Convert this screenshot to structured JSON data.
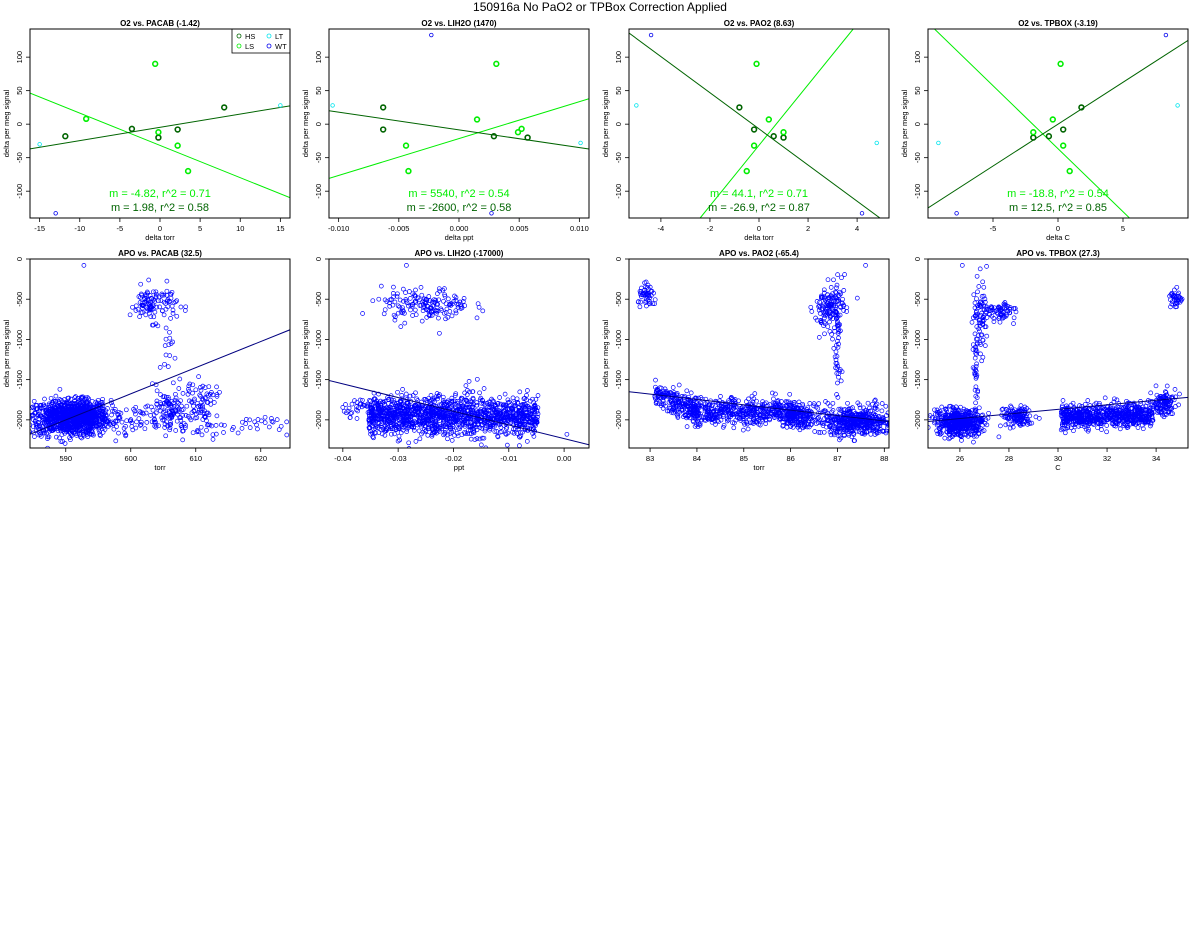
{
  "figure": {
    "title": "150916a   No PaO2 or TPBox Correction Applied"
  },
  "colors": {
    "HS": "#006400",
    "LS": "#00ee00",
    "LT": "#00e5ee",
    "WT": "#0000ee",
    "apo_points": "#0000ff",
    "apo_line": "#000080",
    "fit_dark": "#006400",
    "fit_light": "#00ee00"
  },
  "chart_data": [
    {
      "type": "scatter",
      "title": "O2 vs. PACAB (-1.42)",
      "xlabel": "delta torr",
      "ylabel": "delta per meg signal",
      "xlim": [
        -16.2,
        16.2
      ],
      "ylim": [
        -140,
        142
      ],
      "xticks": [
        -15,
        -10,
        -5,
        0,
        5,
        10,
        15
      ],
      "xtick_labels": [
        "-15",
        "-10",
        "-5",
        "0",
        "5",
        "10",
        "15"
      ],
      "yticks": [
        -100,
        -50,
        0,
        50,
        100
      ],
      "ytick_labels": [
        "-100",
        "-50",
        "0",
        "50",
        "100"
      ],
      "legend": {
        "position": "top-right",
        "entries": [
          {
            "label": "HS",
            "key": "HS"
          },
          {
            "label": "LT",
            "key": "LT"
          },
          {
            "label": "LS",
            "key": "LS"
          },
          {
            "label": "WT",
            "key": "WT"
          }
        ]
      },
      "series": [
        {
          "name": "HS",
          "points": [
            [
              -11.8,
              -18
            ],
            [
              -3.5,
              -7
            ],
            [
              -0.2,
              -20
            ],
            [
              2.2,
              -8
            ],
            [
              8,
              25
            ]
          ]
        },
        {
          "name": "LS",
          "points": [
            [
              -9.2,
              8
            ],
            [
              -0.6,
              90
            ],
            [
              -0.2,
              -12
            ],
            [
              2.2,
              -32
            ],
            [
              3.5,
              -70
            ]
          ]
        },
        {
          "name": "LT",
          "points": [
            [
              15,
              28
            ],
            [
              -15,
              -30
            ]
          ]
        },
        {
          "name": "WT",
          "points": [
            [
              -13,
              -133
            ]
          ]
        }
      ],
      "fits": [
        {
          "series": "LS",
          "text": "m = -4.82, r^2 = 0.71",
          "x": [
            -16.2,
            16.2
          ],
          "y": [
            46.4,
            -109.7
          ]
        },
        {
          "series": "HS",
          "text": "m = 1.98, r^2 = 0.58",
          "x": [
            -16.2,
            16.2
          ],
          "y": [
            -36.8,
            27.4
          ]
        }
      ]
    },
    {
      "type": "scatter",
      "title": "O2 vs. LIH2O (1470)",
      "xlabel": "delta ppt",
      "ylabel": "delta per meg signal",
      "xlim": [
        -0.0108,
        0.0108
      ],
      "ylim": [
        -140,
        142
      ],
      "xticks": [
        -0.01,
        -0.005,
        0,
        0.005,
        0.01
      ],
      "xtick_labels": [
        "-0.010",
        "-0.005",
        "0.000",
        "0.005",
        "0.010"
      ],
      "yticks": [
        -100,
        -50,
        0,
        50,
        100
      ],
      "ytick_labels": [
        "-100",
        "-50",
        "0",
        "50",
        "100"
      ],
      "series": [
        {
          "name": "HS",
          "points": [
            [
              -0.0063,
              25
            ],
            [
              -0.0063,
              -8
            ],
            [
              0.0029,
              -18
            ],
            [
              0.0057,
              -20
            ]
          ]
        },
        {
          "name": "LS",
          "points": [
            [
              -0.0044,
              -32
            ],
            [
              -0.0042,
              -70
            ],
            [
              0.0031,
              90
            ],
            [
              0.0015,
              7
            ],
            [
              0.0049,
              -12
            ],
            [
              0.0052,
              -7
            ]
          ]
        },
        {
          "name": "LT",
          "points": [
            [
              -0.0105,
              28
            ],
            [
              0.0101,
              -28
            ]
          ]
        },
        {
          "name": "WT",
          "points": [
            [
              -0.0023,
              133
            ],
            [
              0.0027,
              -133
            ]
          ]
        }
      ],
      "fits": [
        {
          "series": "LS",
          "text": "m = 5540, r^2 = 0.54",
          "x": [
            -0.0108,
            0.0108
          ],
          "y": [
            -81,
            38
          ]
        },
        {
          "series": "HS",
          "text": "m = -2600, r^2 = 0.58",
          "x": [
            -0.0108,
            0.0108
          ],
          "y": [
            20,
            -37
          ]
        }
      ]
    },
    {
      "type": "scatter",
      "title": "O2 vs. PAO2 (8.63)",
      "xlabel": "delta torr",
      "ylabel": "delta per meg signal",
      "xlim": [
        -5.3,
        5.3
      ],
      "ylim": [
        -140,
        142
      ],
      "xticks": [
        -4,
        -2,
        0,
        2,
        4
      ],
      "xtick_labels": [
        "-4",
        "-2",
        "0",
        "2",
        "4"
      ],
      "yticks": [
        -100,
        -50,
        0,
        50,
        100
      ],
      "ytick_labels": [
        "-100",
        "-50",
        "0",
        "50",
        "100"
      ],
      "series": [
        {
          "name": "HS",
          "points": [
            [
              -0.8,
              25
            ],
            [
              -0.2,
              -8
            ],
            [
              0.6,
              -18
            ],
            [
              1.0,
              -20
            ]
          ]
        },
        {
          "name": "LS",
          "points": [
            [
              -0.5,
              -70
            ],
            [
              -0.2,
              -32
            ],
            [
              0.4,
              7
            ],
            [
              1.0,
              -12
            ],
            [
              -0.1,
              90
            ]
          ]
        },
        {
          "name": "LT",
          "points": [
            [
              -5.0,
              28
            ],
            [
              4.8,
              -28
            ]
          ]
        },
        {
          "name": "WT",
          "points": [
            [
              -4.4,
              133
            ],
            [
              4.2,
              -133
            ]
          ]
        }
      ],
      "fits": [
        {
          "series": "LS",
          "text": "m = 44.1, r^2 = 0.71",
          "x": [
            -2.4,
            3.84
          ],
          "y": [
            -140,
            142
          ]
        },
        {
          "series": "HS",
          "text": "m = -26.9, r^2 = 0.87",
          "x": [
            -5.3,
            5.3
          ],
          "y": [
            136,
            -150
          ]
        }
      ]
    },
    {
      "type": "scatter",
      "title": "O2 vs. TPBOX (-3.19)",
      "xlabel": "delta C",
      "ylabel": "delta per meg signal",
      "xlim": [
        -10,
        10
      ],
      "ylim": [
        -140,
        142
      ],
      "xticks": [
        -5,
        0,
        5
      ],
      "xtick_labels": [
        "-5",
        "0",
        "5"
      ],
      "yticks": [
        -100,
        -50,
        0,
        50,
        100
      ],
      "ytick_labels": [
        "-100",
        "-50",
        "0",
        "50",
        "100"
      ],
      "series": [
        {
          "name": "HS",
          "points": [
            [
              -1.9,
              -20
            ],
            [
              -0.7,
              -18
            ],
            [
              0.4,
              -8
            ],
            [
              1.8,
              25
            ]
          ]
        },
        {
          "name": "LS",
          "points": [
            [
              -1.9,
              -12
            ],
            [
              -0.4,
              7
            ],
            [
              0.4,
              -32
            ],
            [
              0.9,
              -70
            ],
            [
              0.2,
              90
            ]
          ]
        },
        {
          "name": "LT",
          "points": [
            [
              -9.2,
              -28
            ],
            [
              9.2,
              28
            ]
          ]
        },
        {
          "name": "WT",
          "points": [
            [
              -7.8,
              -133
            ],
            [
              8.3,
              133
            ]
          ]
        }
      ],
      "fits": [
        {
          "series": "LS",
          "text": "m = -18.8, r^2 = 0.54",
          "x": [
            -9.5,
            5.5
          ],
          "y": [
            142,
            -140
          ]
        },
        {
          "series": "HS",
          "text": "m = 12.5, r^2 = 0.85",
          "x": [
            -10,
            10
          ],
          "y": [
            -125,
            125
          ]
        }
      ]
    },
    {
      "type": "scatter",
      "title": "APO vs. PACAB (32.5)",
      "xlabel": "torr",
      "ylabel": "delta per meg signal",
      "xlim": [
        584.5,
        624.5
      ],
      "ylim": [
        -2350,
        0
      ],
      "xticks": [
        590,
        600,
        610,
        620
      ],
      "xtick_labels": [
        "590",
        "600",
        "610",
        "620"
      ],
      "yticks": [
        0,
        -500,
        -1000,
        -1500,
        -2000
      ],
      "ytick_labels": [
        "0",
        "-500",
        "-1000",
        "-1500",
        "-2000"
      ],
      "clusters": [
        {
          "cx": 590.5,
          "cy": -1980,
          "sx": 3.2,
          "sy": 110,
          "n": 900
        },
        {
          "cx": 593,
          "cy": -1930,
          "sx": 1.6,
          "sy": 90,
          "n": 250
        },
        {
          "cx": 603.5,
          "cy": -560,
          "sx": 1.8,
          "sy": 110,
          "n": 110
        },
        {
          "cx": 606,
          "cy": -1900,
          "sx": 1.8,
          "sy": 140,
          "n": 120
        },
        {
          "cx": 611,
          "cy": -1750,
          "sx": 1.2,
          "sy": 110,
          "n": 60
        },
        {
          "cx": 612,
          "cy": -2080,
          "sx": 5,
          "sy": 70,
          "n": 40
        },
        {
          "cx": 619,
          "cy": -2060,
          "sx": 3,
          "sy": 60,
          "n": 20
        },
        {
          "cx": 599,
          "cy": -2030,
          "sx": 2.5,
          "sy": 90,
          "n": 40
        },
        {
          "cx": 605.5,
          "cy": -1150,
          "sx": 0.5,
          "sy": 200,
          "n": 14
        }
      ],
      "outliers": [
        [
          592.8,
          -80
        ]
      ],
      "fit": {
        "x": [
          584.5,
          624.5
        ],
        "y": [
          -2180,
          -880
        ]
      }
    },
    {
      "type": "scatter",
      "title": "APO vs. LIH2O (-17000)",
      "xlabel": "ppt",
      "ylabel": "delta per meg signal",
      "xlim": [
        -0.0425,
        0.0045
      ],
      "ylim": [
        -2350,
        0
      ],
      "xticks": [
        -0.04,
        -0.03,
        -0.02,
        -0.01,
        0
      ],
      "xtick_labels": [
        "-0.04",
        "-0.03",
        "-0.02",
        "-0.01",
        "0.00"
      ],
      "yticks": [
        0,
        -500,
        -1000,
        -1500,
        -2000
      ],
      "ytick_labels": [
        "0",
        "-500",
        "-1000",
        "-1500",
        "-2000"
      ],
      "clusters": [
        {
          "cx": -0.02,
          "cy": -1950,
          "sx": 0.009,
          "sy": 120,
          "n": 1400,
          "band": true
        },
        {
          "cx": -0.025,
          "cy": -580,
          "sx": 0.004,
          "sy": 110,
          "n": 160
        },
        {
          "cx": -0.036,
          "cy": -1830,
          "sx": 0.002,
          "sy": 60,
          "n": 40
        }
      ],
      "outliers": [
        [
          -0.0285,
          -80
        ],
        [
          0.0005,
          -2180
        ],
        [
          -0.0335,
          -500
        ]
      ],
      "fit": {
        "x": [
          -0.0425,
          0.0045
        ],
        "y": [
          -1510,
          -2310
        ]
      }
    },
    {
      "type": "scatter",
      "title": "APO vs. PAO2 (-65.4)",
      "xlabel": "torr",
      "ylabel": "delta per meg signal",
      "xlim": [
        82.55,
        88.1
      ],
      "ylim": [
        -2350,
        0
      ],
      "xticks": [
        83,
        84,
        85,
        86,
        87,
        88
      ],
      "xtick_labels": [
        "83",
        "84",
        "85",
        "86",
        "87",
        "88"
      ],
      "yticks": [
        0,
        -500,
        -1000,
        -1500,
        -2000
      ],
      "ytick_labels": [
        "0",
        "-500",
        "-1000",
        "-1500",
        "-2000"
      ],
      "clusters": [
        {
          "cx": 82.95,
          "cy": -470,
          "sx": 0.1,
          "sy": 70,
          "n": 50
        },
        {
          "cx": 85,
          "cy": -1900,
          "sx": 0.7,
          "sy": 80,
          "n": 700,
          "band": true,
          "ramp": [
            83.1,
            84,
            -1680,
            -1900
          ]
        },
        {
          "cx": 86.2,
          "cy": -1950,
          "sx": 0.15,
          "sy": 70,
          "n": 160
        },
        {
          "cx": 87.4,
          "cy": -2020,
          "sx": 0.4,
          "sy": 90,
          "n": 500
        },
        {
          "cx": 86.85,
          "cy": -600,
          "sx": 0.15,
          "sy": 140,
          "n": 140
        },
        {
          "cx": 87,
          "cy": -1200,
          "sx": 0.05,
          "sy": 300,
          "n": 40
        }
      ],
      "outliers": [
        [
          87.6,
          -80
        ]
      ],
      "fit": {
        "x": [
          82.55,
          88.1
        ],
        "y": [
          -1650,
          -2020
        ]
      }
    },
    {
      "type": "scatter",
      "title": "APO vs. TPBOX (27.3)",
      "xlabel": "C",
      "ylabel": "delta per meg signal",
      "xlim": [
        24.7,
        35.3
      ],
      "ylim": [
        -2350,
        0
      ],
      "xticks": [
        26,
        28,
        30,
        32,
        34
      ],
      "xtick_labels": [
        "26",
        "28",
        "30",
        "32",
        "34"
      ],
      "yticks": [
        0,
        -500,
        -1000,
        -1500,
        -2000
      ],
      "ytick_labels": [
        "0",
        "-500",
        "-1000",
        "-1500",
        "-2000"
      ],
      "clusters": [
        {
          "cx": 26,
          "cy": -2030,
          "sx": 0.5,
          "sy": 80,
          "n": 500
        },
        {
          "cx": 28.4,
          "cy": -1960,
          "sx": 0.3,
          "sy": 60,
          "n": 120
        },
        {
          "cx": 32,
          "cy": -1950,
          "sx": 1.1,
          "sy": 70,
          "n": 700,
          "band": true
        },
        {
          "cx": 34.3,
          "cy": -1800,
          "sx": 0.25,
          "sy": 80,
          "n": 120
        },
        {
          "cx": 26.8,
          "cy": -700,
          "sx": 0.15,
          "sy": 250,
          "n": 80
        },
        {
          "cx": 27.6,
          "cy": -650,
          "sx": 0.35,
          "sy": 60,
          "n": 70
        },
        {
          "cx": 34.8,
          "cy": -500,
          "sx": 0.12,
          "sy": 60,
          "n": 40
        },
        {
          "cx": 26.65,
          "cy": -1300,
          "sx": 0.05,
          "sy": 350,
          "n": 30
        }
      ],
      "outliers": [
        [
          26.1,
          -80
        ],
        [
          25.2,
          -2180
        ]
      ],
      "fit": {
        "x": [
          24.7,
          35.3
        ],
        "y": [
          -2020,
          -1720
        ]
      }
    }
  ]
}
